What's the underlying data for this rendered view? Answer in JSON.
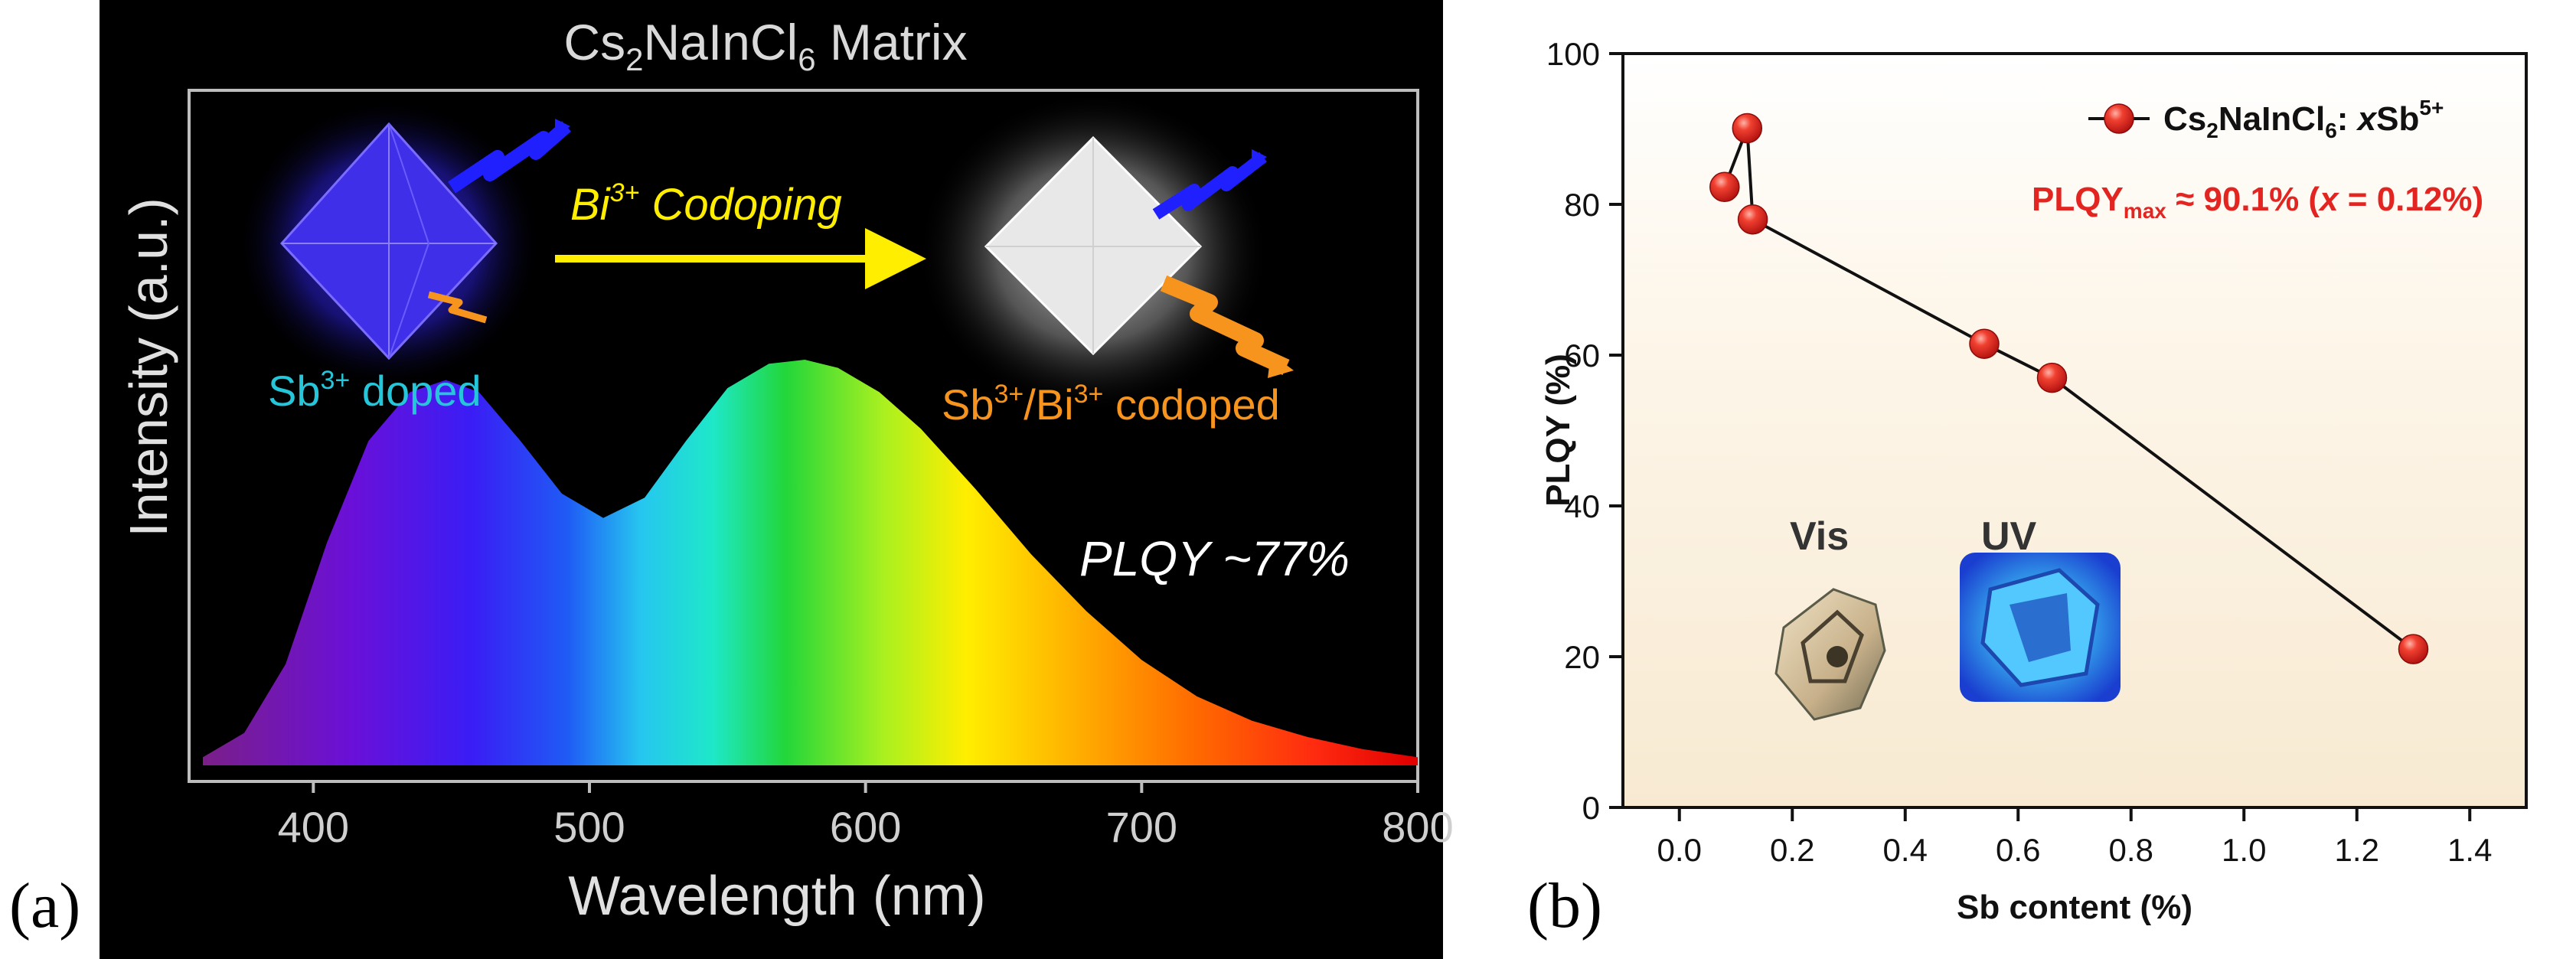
{
  "colors": {
    "marker": "#e32522",
    "annotation_red": "#e32522",
    "sb_doped_cyan": "#26c6da",
    "codoped_orange": "#f7941d",
    "codoping_yellow": "#ffee00",
    "panel_a_bg": "#000000",
    "panel_b_bg": "#fdf3e3"
  },
  "panel_labels": {
    "a": "(a)",
    "b": "(b)"
  },
  "chart_data": [
    {
      "type": "area",
      "panel": "a",
      "title": "Cs2NaInCl6 Matrix",
      "title_parts": {
        "base": "Cs",
        "sub1": "2",
        "mid": "NaInCl",
        "sub2": "6",
        "end": " Matrix"
      },
      "xlabel": "Wavelength (nm)",
      "ylabel": "Intensity (a.u.)",
      "xlim": [
        355,
        800
      ],
      "x_ticks": [
        400,
        500,
        600,
        700,
        800
      ],
      "x_tick_labels": [
        "400",
        "500",
        "600",
        "700",
        "800"
      ],
      "series": [
        {
          "name": "emission spectrum",
          "x": [
            360,
            375,
            390,
            405,
            420,
            435,
            448,
            460,
            475,
            490,
            505,
            520,
            535,
            550,
            565,
            578,
            590,
            605,
            620,
            640,
            660,
            680,
            700,
            720,
            740,
            760,
            780,
            800
          ],
          "y": [
            0.02,
            0.08,
            0.25,
            0.55,
            0.8,
            0.92,
            0.95,
            0.92,
            0.8,
            0.67,
            0.61,
            0.66,
            0.8,
            0.93,
            0.99,
            1.0,
            0.98,
            0.92,
            0.83,
            0.68,
            0.52,
            0.38,
            0.26,
            0.17,
            0.11,
            0.07,
            0.04,
            0.02
          ]
        }
      ],
      "annotations": {
        "plqy": "PLQY ~77%",
        "codoping": "Bi3+ Codoping",
        "codoping_parts": {
          "base": "Bi",
          "sup": "3+",
          "end": " Codoping"
        },
        "sb_doped": "Sb3+ doped",
        "sb_doped_parts": {
          "base": "Sb",
          "sup": "3+",
          "end": " doped"
        },
        "codoped": "Sb3+/Bi3+ codoped",
        "codoped_parts": {
          "base1": "Sb",
          "sup1": "3+",
          "mid": "/Bi",
          "sup2": "3+",
          "end": " codoped"
        }
      }
    },
    {
      "type": "line",
      "panel": "b",
      "xlabel": "Sb content (%)",
      "ylabel": "PLQY (%)",
      "xlim": [
        -0.1,
        1.5
      ],
      "ylim": [
        0,
        100
      ],
      "x_ticks": [
        0.0,
        0.2,
        0.4,
        0.6,
        0.8,
        1.0,
        1.2,
        1.4
      ],
      "x_tick_labels": [
        "0.0",
        "0.2",
        "0.4",
        "0.6",
        "0.8",
        "1.0",
        "1.2",
        "1.4"
      ],
      "y_ticks": [
        0,
        20,
        40,
        60,
        80,
        100
      ],
      "y_tick_labels": [
        "0",
        "20",
        "40",
        "60",
        "80",
        "100"
      ],
      "series": [
        {
          "name": "Cs2NaInCl6: xSb5+",
          "legend_parts": {
            "base": "Cs",
            "sub1": "2",
            "mid": "NaInCl",
            "sub2": "6",
            "colon": ": ",
            "x": "x",
            "sb": "Sb",
            "sup": "5+"
          },
          "x": [
            0.08,
            0.12,
            0.13,
            0.54,
            0.66,
            1.3
          ],
          "y": [
            82.3,
            90.1,
            78.0,
            61.5,
            57.0,
            21.0
          ]
        }
      ],
      "annotations": {
        "plqy_max": "PLQYmax ≈ 90.1% (x = 0.12%)",
        "plqy_max_parts": {
          "base": "PLQY",
          "sub": "max",
          "mid": " ≈ 90.1% (",
          "x": "x",
          "end": " = 0.12%)"
        },
        "inset_vis": "Vis",
        "inset_uv": "UV"
      }
    }
  ]
}
